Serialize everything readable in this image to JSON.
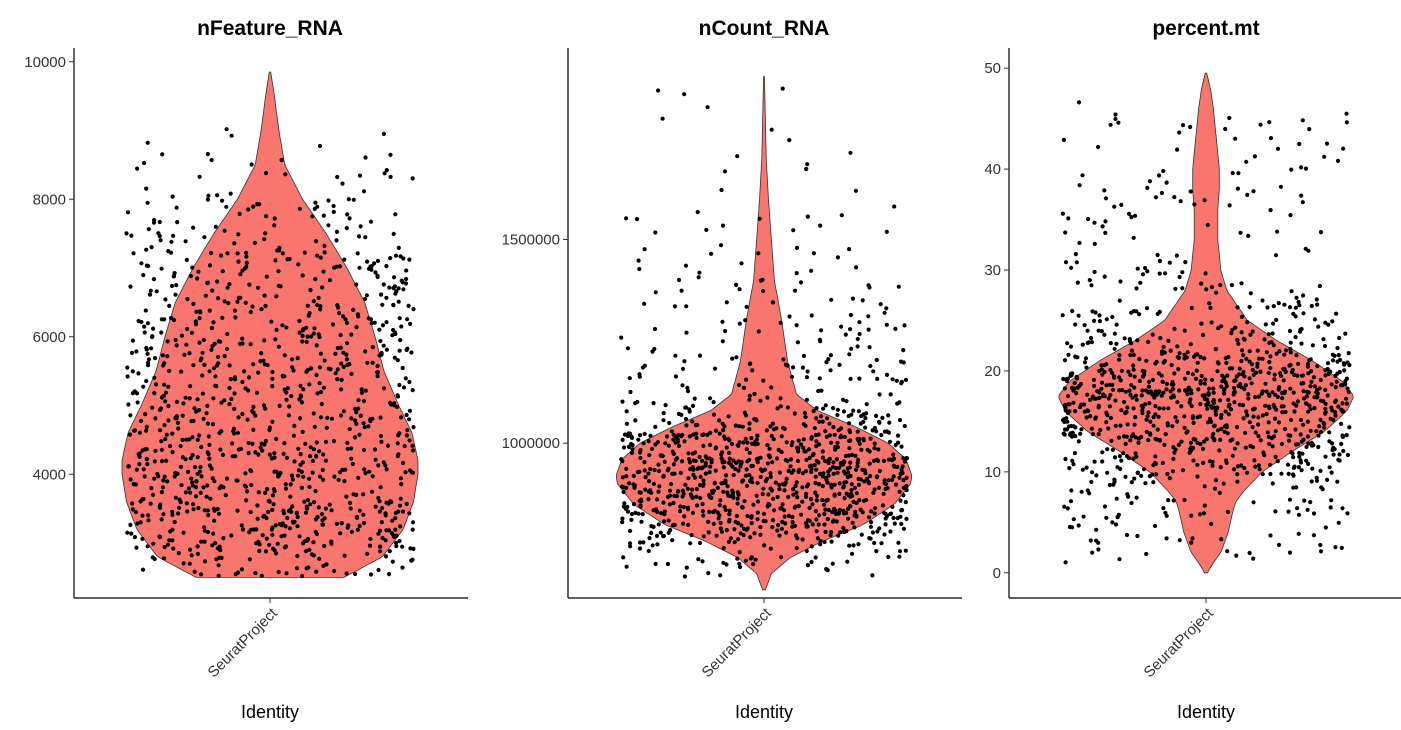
{
  "figure": {
    "fill_color": "#F8766D",
    "point_color": "#000000"
  },
  "chart_data": [
    {
      "type": "violin",
      "title": "nFeature_RNA",
      "xlabel": "Identity",
      "categories": [
        "SeuratProject"
      ],
      "yticks": [
        4000,
        6000,
        8000,
        10000
      ],
      "ylim": [
        2200,
        10200
      ],
      "summary": {
        "min": 2500,
        "max": 9850,
        "mode": 4200,
        "n_points": 1100
      },
      "density_profile": [
        [
          2500,
          0.5
        ],
        [
          2800,
          0.76
        ],
        [
          3200,
          0.9
        ],
        [
          3600,
          0.97
        ],
        [
          4000,
          1.0
        ],
        [
          4200,
          1.0
        ],
        [
          4600,
          0.96
        ],
        [
          5000,
          0.87
        ],
        [
          5500,
          0.77
        ],
        [
          6000,
          0.71
        ],
        [
          6500,
          0.64
        ],
        [
          7000,
          0.52
        ],
        [
          7500,
          0.38
        ],
        [
          8000,
          0.22
        ],
        [
          8500,
          0.1
        ],
        [
          9000,
          0.06
        ],
        [
          9500,
          0.03
        ],
        [
          9850,
          0.005
        ]
      ]
    },
    {
      "type": "violin",
      "title": "nCount_RNA",
      "xlabel": "Identity",
      "categories": [
        "SeuratProject"
      ],
      "yticks": [
        1000000,
        1500000
      ],
      "yticklabels": [
        "1000000",
        "1500000"
      ],
      "ylim": [
        620000,
        1970000
      ],
      "summary": {
        "min": 640000,
        "max": 1900000,
        "mode": 920000,
        "n_points": 1100
      },
      "density_profile": [
        [
          640000,
          0.01
        ],
        [
          680000,
          0.05
        ],
        [
          720000,
          0.18
        ],
        [
          760000,
          0.4
        ],
        [
          800000,
          0.67
        ],
        [
          850000,
          0.88
        ],
        [
          900000,
          0.99
        ],
        [
          920000,
          1.0
        ],
        [
          960000,
          0.96
        ],
        [
          1000000,
          0.84
        ],
        [
          1040000,
          0.62
        ],
        [
          1080000,
          0.36
        ],
        [
          1120000,
          0.22
        ],
        [
          1200000,
          0.16
        ],
        [
          1300000,
          0.12
        ],
        [
          1400000,
          0.07
        ],
        [
          1500000,
          0.05
        ],
        [
          1600000,
          0.03
        ],
        [
          1700000,
          0.015
        ],
        [
          1900000,
          0.003
        ]
      ]
    },
    {
      "type": "violin",
      "title": "percent.mt",
      "xlabel": "Identity",
      "categories": [
        "SeuratProject"
      ],
      "yticks": [
        0,
        10,
        20,
        30,
        40,
        50
      ],
      "ylim": [
        -2.5,
        52
      ],
      "summary": {
        "min": 0,
        "max": 49.5,
        "mode": 17.5,
        "n_points": 1100
      },
      "density_profile": [
        [
          0,
          0.01
        ],
        [
          1,
          0.05
        ],
        [
          2,
          0.1
        ],
        [
          4,
          0.15
        ],
        [
          6,
          0.18
        ],
        [
          7,
          0.2
        ],
        [
          8,
          0.25
        ],
        [
          10,
          0.38
        ],
        [
          12,
          0.58
        ],
        [
          14,
          0.8
        ],
        [
          16,
          0.95
        ],
        [
          17.5,
          1.0
        ],
        [
          19,
          0.92
        ],
        [
          21,
          0.72
        ],
        [
          23,
          0.48
        ],
        [
          25,
          0.28
        ],
        [
          28,
          0.14
        ],
        [
          30,
          0.1
        ],
        [
          33,
          0.08
        ],
        [
          36,
          0.08
        ],
        [
          38,
          0.09
        ],
        [
          40,
          0.09
        ],
        [
          43,
          0.07
        ],
        [
          46,
          0.05
        ],
        [
          48,
          0.03
        ],
        [
          49.5,
          0.005
        ]
      ]
    }
  ]
}
